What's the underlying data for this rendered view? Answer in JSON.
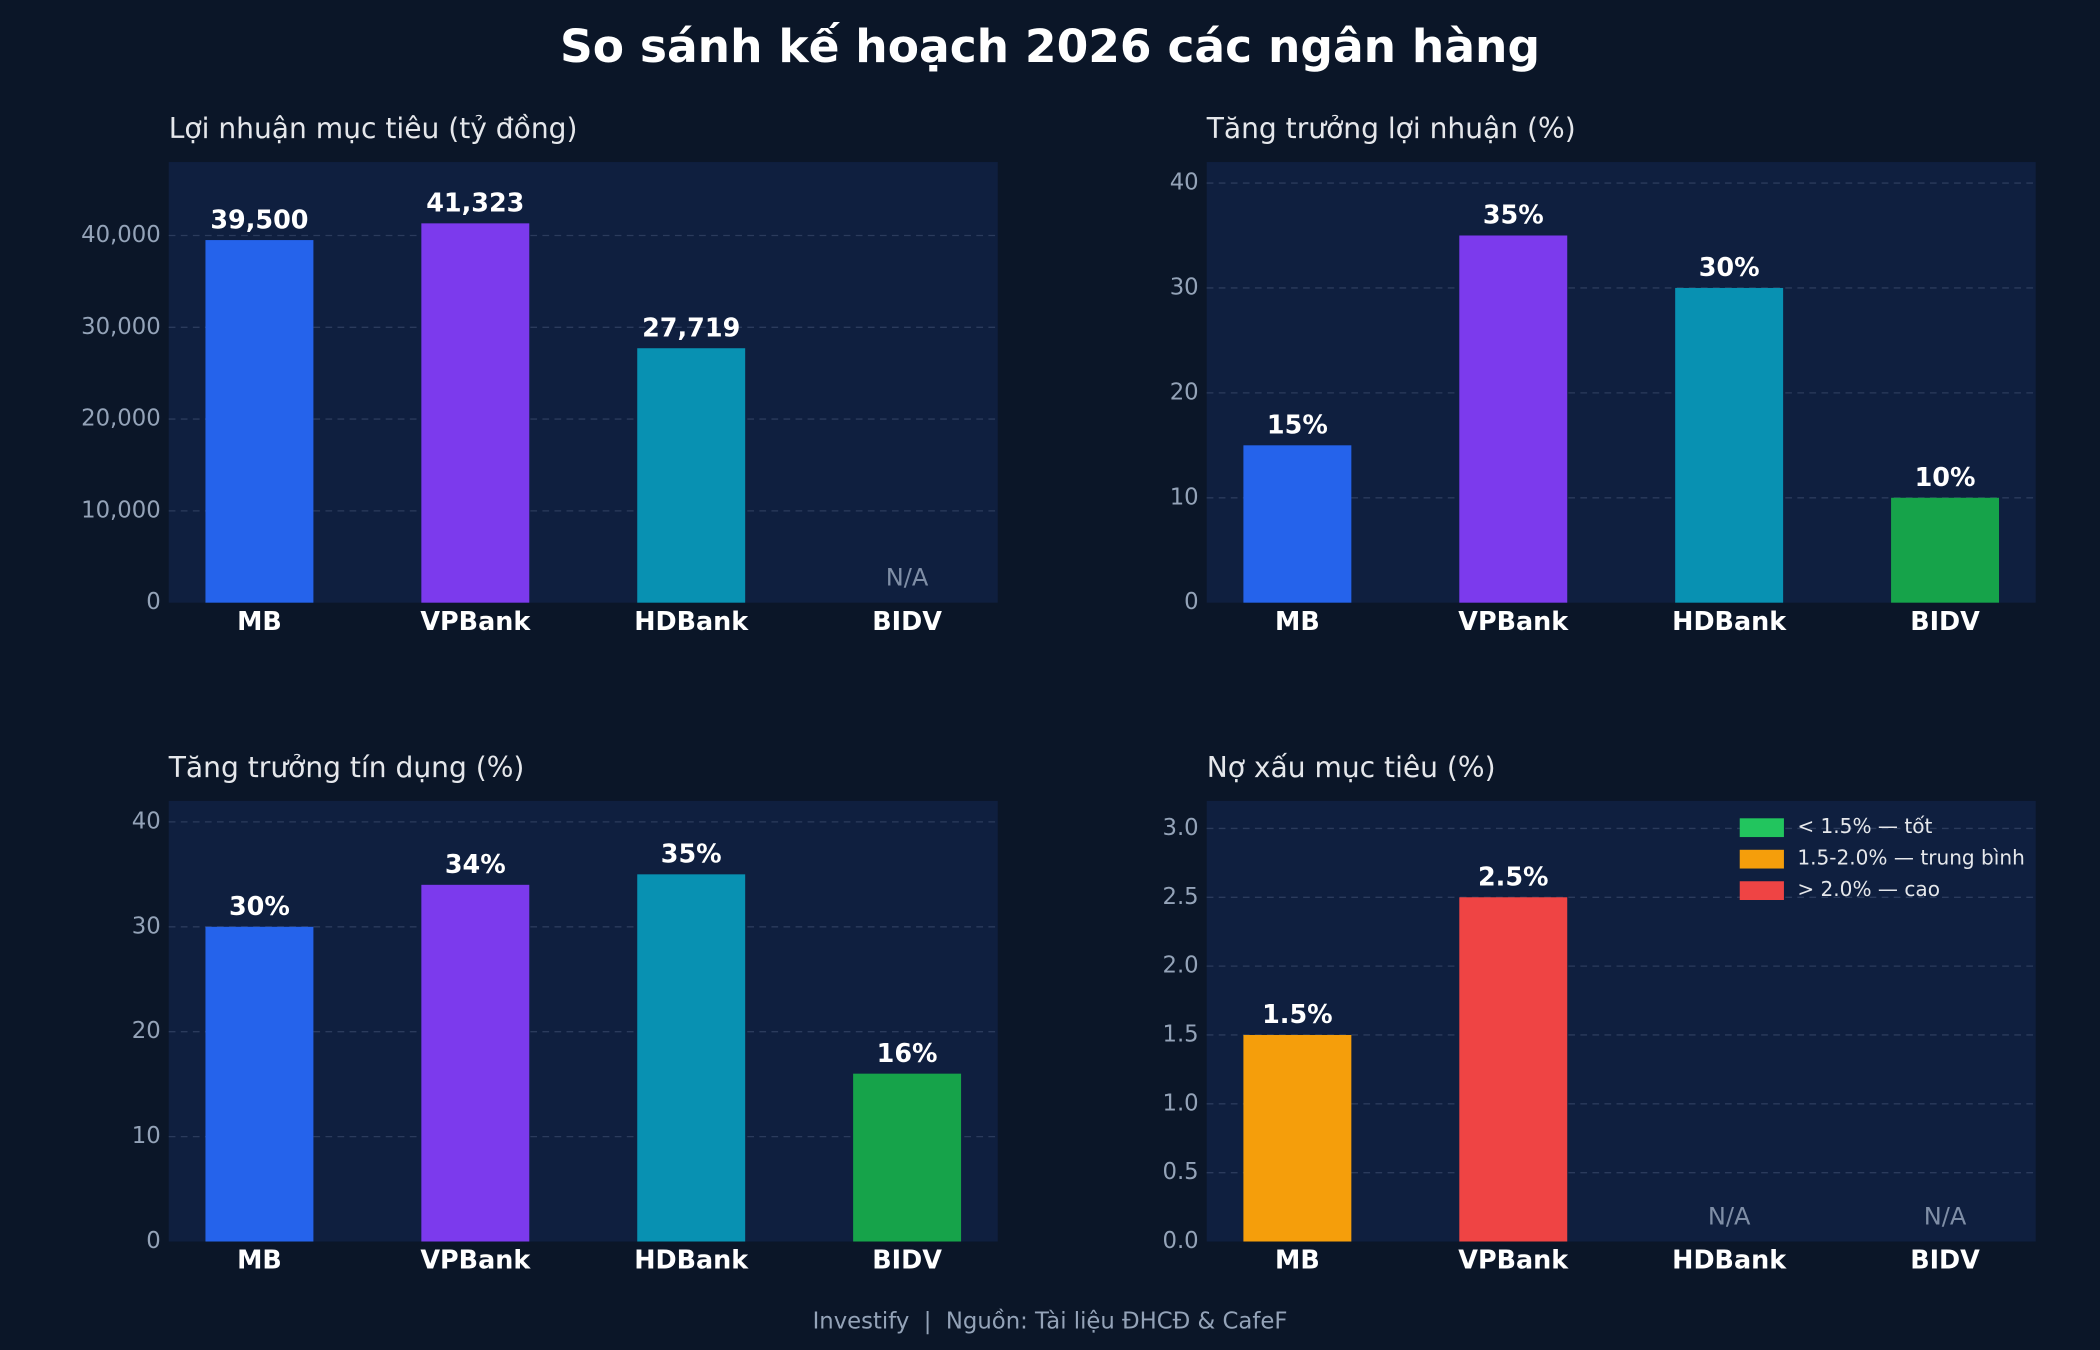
{
  "title": "So sánh kế hoạch 2026 các ngân hàng",
  "footer": "Investify  |  Nguồn: Tài liệu ĐHCĐ & CafeF",
  "chart_data": [
    {
      "type": "bar",
      "title": "Lợi nhuận mục tiêu (tỷ đồng)",
      "categories": [
        "MB",
        "VPBank",
        "HDBank",
        "BIDV"
      ],
      "values": [
        39500,
        41323,
        27719,
        null
      ],
      "value_labels": [
        "39,500",
        "41,323",
        "27,719",
        "N/A"
      ],
      "colors": [
        "#2563eb",
        "#7c3aed",
        "#0891b2",
        "#16a34a"
      ],
      "ylim": [
        0,
        48000
      ],
      "yticks": [
        0,
        {
          "value": 10000,
          "label": "10,000"
        },
        {
          "value": 20000,
          "label": "20,000"
        },
        {
          "value": 30000,
          "label": "30,000"
        },
        {
          "value": 40000,
          "label": "40,000"
        }
      ],
      "grid": true
    },
    {
      "type": "bar",
      "title": "Tăng trưởng lợi nhuận (%)",
      "categories": [
        "MB",
        "VPBank",
        "HDBank",
        "BIDV"
      ],
      "values": [
        15,
        35,
        30,
        10
      ],
      "value_labels": [
        "15%",
        "35%",
        "30%",
        "10%"
      ],
      "colors": [
        "#2563eb",
        "#7c3aed",
        "#0891b2",
        "#16a34a"
      ],
      "ylim": [
        0,
        42
      ],
      "yticks": [
        0,
        10,
        20,
        30,
        40
      ],
      "grid": true
    },
    {
      "type": "bar",
      "title": "Tăng trưởng tín dụng (%)",
      "categories": [
        "MB",
        "VPBank",
        "HDBank",
        "BIDV"
      ],
      "values": [
        30,
        34,
        35,
        16
      ],
      "value_labels": [
        "30%",
        "34%",
        "35%",
        "16%"
      ],
      "colors": [
        "#2563eb",
        "#7c3aed",
        "#0891b2",
        "#16a34a"
      ],
      "ylim": [
        0,
        42
      ],
      "yticks": [
        0,
        10,
        20,
        30,
        40
      ],
      "grid": true
    },
    {
      "type": "bar",
      "title": "Nợ xấu mục tiêu (%)",
      "categories": [
        "MB",
        "VPBank",
        "HDBank",
        "BIDV"
      ],
      "values": [
        1.5,
        2.5,
        null,
        null
      ],
      "value_labels": [
        "1.5%",
        "2.5%",
        "N/A",
        "N/A"
      ],
      "colors": [
        "#f59e0b",
        "#ef4444",
        null,
        null
      ],
      "ylim": [
        0,
        3.2
      ],
      "yticks": [
        {
          "value": 0,
          "label": "0.0"
        },
        0.5,
        {
          "value": 1,
          "label": "1.0"
        },
        1.5,
        {
          "value": 2,
          "label": "2.0"
        },
        2.5,
        {
          "value": 3,
          "label": "3.0"
        }
      ],
      "grid": true,
      "legend": {
        "position": "upper right",
        "entries": [
          {
            "name": "< 1.5% — tốt",
            "color": "#22c55e"
          },
          {
            "name": "1.5-2.0% — trung bình",
            "color": "#f59e0b"
          },
          {
            "name": "> 2.0% — cao",
            "color": "#ef4444"
          }
        ]
      }
    }
  ]
}
